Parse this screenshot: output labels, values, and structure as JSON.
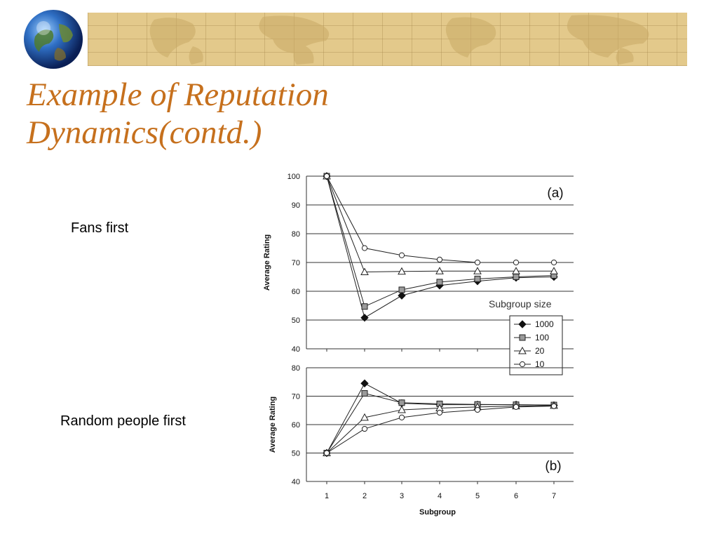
{
  "slide": {
    "title_line1": "Example of Reputation",
    "title_line2": "Dynamics(contd.)",
    "label_top": "Fans first",
    "label_bottom": "Random people first"
  },
  "colors": {
    "title": "#c6701d",
    "banner": "#e3c98b",
    "series": "#222222"
  },
  "icons": {
    "globe": "globe-icon",
    "banner": "world-map-banner"
  },
  "chart_data": [
    {
      "type": "line",
      "panel_label": "(a)",
      "x": [
        1,
        2,
        3,
        4,
        5,
        6,
        7
      ],
      "xlabel": "",
      "ylabel": "Average Rating",
      "ylim": [
        40,
        100
      ],
      "yticks": [
        40,
        50,
        60,
        70,
        80,
        90,
        100
      ],
      "grid": true,
      "legend": {
        "title": "Subgroup size",
        "placement": "bottom-right",
        "entries": [
          "1000",
          "100",
          "20",
          "10"
        ]
      },
      "series": [
        {
          "name": "1000",
          "marker": "diamond-filled",
          "values": [
            100,
            50.8,
            58.5,
            62,
            63.5,
            64.7,
            65
          ]
        },
        {
          "name": "100",
          "marker": "square-gray",
          "values": [
            100,
            54.7,
            60.5,
            63.2,
            64.3,
            65,
            65.5
          ]
        },
        {
          "name": "20",
          "marker": "triangle-open",
          "values": [
            100,
            66.7,
            66.9,
            67,
            67,
            67,
            67
          ]
        },
        {
          "name": "10",
          "marker": "circle-open",
          "values": [
            100,
            75,
            72.5,
            71,
            70,
            70,
            70
          ]
        }
      ]
    },
    {
      "type": "line",
      "panel_label": "(b)",
      "x": [
        1,
        2,
        3,
        4,
        5,
        6,
        7
      ],
      "xticks": [
        "1",
        "2",
        "3",
        "4",
        "5",
        "6",
        "7"
      ],
      "xlabel": "Subgroup",
      "ylabel": "Average Rating",
      "ylim": [
        40,
        80
      ],
      "yticks": [
        40,
        50,
        60,
        70,
        80
      ],
      "grid": true,
      "series": [
        {
          "name": "1000",
          "marker": "diamond-filled",
          "values": [
            50,
            74.5,
            67.5,
            67,
            67,
            67,
            66.8
          ]
        },
        {
          "name": "100",
          "marker": "square-gray",
          "values": [
            50,
            71,
            67.7,
            67.3,
            67.1,
            67,
            66.9
          ]
        },
        {
          "name": "20",
          "marker": "triangle-open",
          "values": [
            50,
            62.5,
            65.2,
            65.8,
            66.2,
            66.5,
            66.7
          ]
        },
        {
          "name": "10",
          "marker": "circle-open",
          "values": [
            50,
            58.5,
            62.5,
            64.2,
            65.2,
            66.2,
            66.5
          ]
        }
      ]
    }
  ]
}
